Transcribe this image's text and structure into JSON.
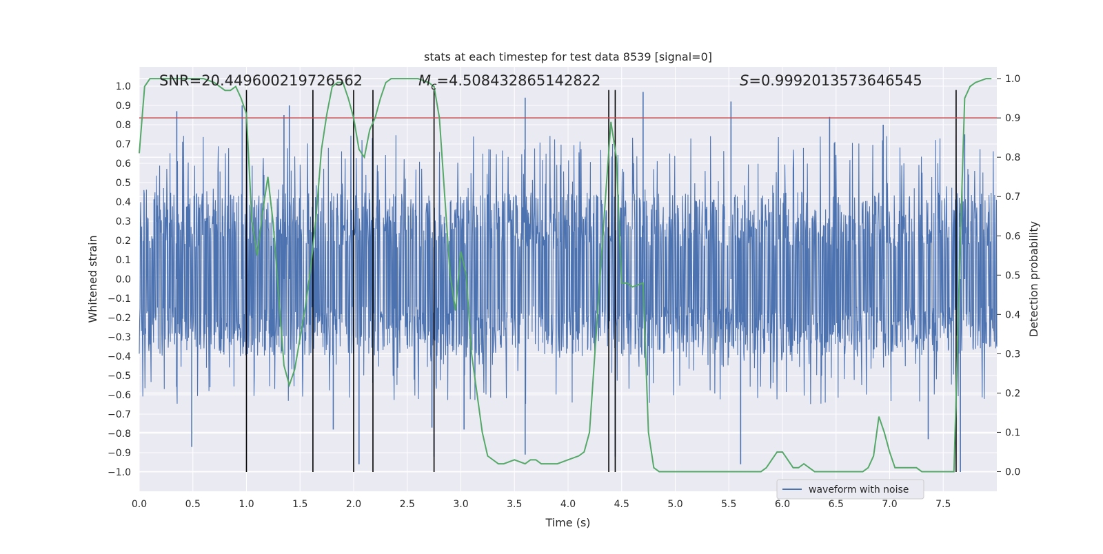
{
  "chart_data": {
    "type": "line",
    "title": "stats at each timestep for test data 8539 [signal=0]",
    "xlabel": "Time (s)",
    "ylabel_left": "Whitened strain",
    "ylabel_right": "Detection probability",
    "xlim": [
      0.0,
      8.0
    ],
    "ylim_left": [
      -1.1,
      1.1
    ],
    "ylim_right": [
      -0.05,
      1.03
    ],
    "grid": true,
    "x_ticks": [
      "0.0",
      "0.5",
      "1.0",
      "1.5",
      "2.0",
      "2.5",
      "3.0",
      "3.5",
      "4.0",
      "4.5",
      "5.0",
      "5.5",
      "6.0",
      "6.5",
      "7.0",
      "7.5"
    ],
    "y_ticks_left": [
      "1.0",
      "0.9",
      "0.8",
      "0.7",
      "0.6",
      "0.5",
      "0.4",
      "0.3",
      "0.2",
      "0.1",
      "0.0",
      "−0.1",
      "−0.2",
      "−0.3",
      "−0.4",
      "−0.5",
      "−0.6",
      "−0.7",
      "−0.8",
      "−0.9",
      "−1.0"
    ],
    "y_ticks_right": [
      "1.0",
      "0.9",
      "0.8",
      "0.7",
      "0.6",
      "0.5",
      "0.4",
      "0.3",
      "0.2",
      "0.1",
      "0.0"
    ],
    "annotations": {
      "snr": "SNR=20.449600219726562",
      "mc_symbol": "M",
      "mc_sub": "c",
      "mc_value": "=4.508432865142822",
      "s_symbol": "S",
      "s_value": "=0.9992013573646545"
    },
    "threshold": {
      "value": 0.9,
      "axis": "right",
      "color": "#c44e52"
    },
    "vertical_markers": {
      "x": [
        1.0,
        1.62,
        2.0,
        2.18,
        2.75,
        4.38,
        4.44,
        7.62
      ],
      "y_range": [
        -1.0,
        0.98
      ],
      "color": "#000000"
    },
    "legend": {
      "placement": "lower-right",
      "entries": [
        "waveform with noise"
      ]
    },
    "series": [
      {
        "name": "waveform with noise",
        "axis": "left",
        "color": "#4c72b0",
        "kind": "noise",
        "typical_envelope": [
          -0.4,
          0.45
        ],
        "spikes": [
          [
            0.35,
            0.87
          ],
          [
            0.49,
            -0.87
          ],
          [
            0.96,
            0.9
          ],
          [
            1.35,
            0.85
          ],
          [
            1.4,
            0.9
          ],
          [
            1.62,
            0.84
          ],
          [
            1.81,
            -0.78
          ],
          [
            2.05,
            -0.96
          ],
          [
            2.73,
            -0.77
          ],
          [
            2.75,
            -0.92
          ],
          [
            3.03,
            -0.78
          ],
          [
            3.6,
            0.94
          ],
          [
            3.6,
            -0.91
          ],
          [
            4.44,
            -0.92
          ],
          [
            4.7,
            0.97
          ],
          [
            5.52,
            0.92
          ],
          [
            5.61,
            -0.96
          ],
          [
            6.44,
            0.84
          ],
          [
            6.94,
            0.8
          ],
          [
            7.36,
            -0.83
          ],
          [
            7.66,
            -1.0
          ],
          [
            7.7,
            0.75
          ]
        ]
      },
      {
        "name": "detection probability",
        "axis": "right",
        "color": "#55a868",
        "kind": "line",
        "x": [
          0.0,
          0.05,
          0.1,
          0.2,
          0.3,
          0.4,
          0.5,
          0.6,
          0.7,
          0.75,
          0.8,
          0.85,
          0.9,
          0.95,
          1.0,
          1.05,
          1.1,
          1.15,
          1.2,
          1.25,
          1.3,
          1.35,
          1.4,
          1.45,
          1.5,
          1.55,
          1.6,
          1.65,
          1.7,
          1.75,
          1.8,
          1.85,
          1.9,
          1.95,
          2.0,
          2.05,
          2.1,
          2.15,
          2.2,
          2.25,
          2.3,
          2.35,
          2.4,
          2.5,
          2.6,
          2.7,
          2.75,
          2.8,
          2.85,
          2.9,
          2.95,
          3.0,
          3.05,
          3.1,
          3.15,
          3.2,
          3.25,
          3.3,
          3.35,
          3.4,
          3.5,
          3.6,
          3.65,
          3.7,
          3.75,
          3.8,
          3.85,
          3.9,
          4.0,
          4.1,
          4.15,
          4.2,
          4.25,
          4.3,
          4.35,
          4.4,
          4.45,
          4.5,
          4.55,
          4.6,
          4.7,
          4.75,
          4.8,
          4.85,
          4.9,
          5.0,
          5.2,
          5.4,
          5.6,
          5.8,
          5.85,
          5.9,
          5.95,
          6.0,
          6.05,
          6.1,
          6.15,
          6.2,
          6.25,
          6.3,
          6.4,
          6.5,
          6.6,
          6.7,
          6.75,
          6.8,
          6.85,
          6.9,
          6.95,
          7.0,
          7.05,
          7.1,
          7.2,
          7.25,
          7.3,
          7.4,
          7.45,
          7.5,
          7.55,
          7.6,
          7.62,
          7.65,
          7.7,
          7.75,
          7.8,
          7.9,
          7.95
        ],
        "y": [
          0.81,
          0.98,
          1.0,
          1.0,
          1.0,
          1.0,
          1.0,
          1.0,
          0.99,
          0.98,
          0.97,
          0.97,
          0.98,
          0.95,
          0.91,
          0.64,
          0.55,
          0.66,
          0.75,
          0.63,
          0.45,
          0.27,
          0.22,
          0.26,
          0.34,
          0.42,
          0.52,
          0.65,
          0.82,
          0.91,
          0.98,
          0.99,
          0.99,
          0.95,
          0.9,
          0.82,
          0.8,
          0.87,
          0.9,
          0.95,
          0.99,
          1.0,
          1.0,
          1.0,
          1.0,
          0.99,
          0.98,
          0.9,
          0.7,
          0.5,
          0.41,
          0.56,
          0.5,
          0.3,
          0.2,
          0.1,
          0.04,
          0.03,
          0.02,
          0.02,
          0.03,
          0.02,
          0.03,
          0.03,
          0.02,
          0.02,
          0.02,
          0.02,
          0.03,
          0.04,
          0.05,
          0.1,
          0.3,
          0.5,
          0.7,
          0.89,
          0.8,
          0.48,
          0.48,
          0.47,
          0.48,
          0.1,
          0.01,
          0.0,
          0.0,
          0.0,
          0.0,
          0.0,
          0.0,
          0.0,
          0.01,
          0.03,
          0.05,
          0.05,
          0.03,
          0.01,
          0.01,
          0.02,
          0.01,
          0.0,
          0.0,
          0.0,
          0.0,
          0.0,
          0.0,
          0.01,
          0.04,
          0.14,
          0.1,
          0.05,
          0.01,
          0.01,
          0.01,
          0.01,
          0.0,
          0.0,
          0.0,
          0.0,
          0.0,
          0.0,
          0.19,
          0.5,
          0.95,
          0.98,
          0.99,
          1.0,
          1.0
        ]
      }
    ]
  }
}
